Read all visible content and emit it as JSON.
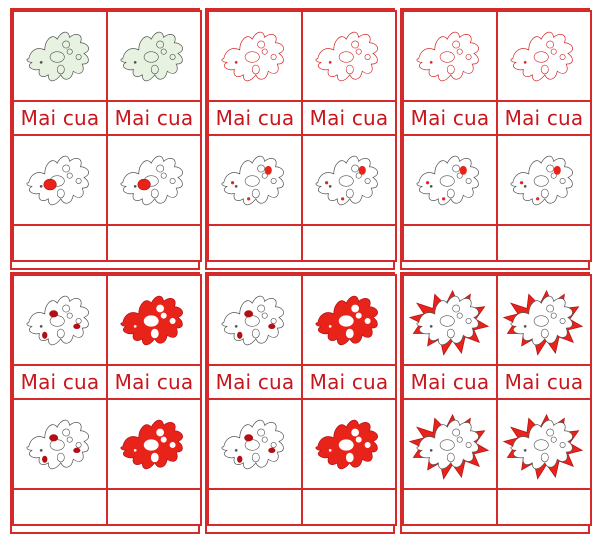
{
  "card_label": "Mai cua",
  "colors": {
    "red": "#d42a2a",
    "text_red": "#c8161d",
    "fill_red": "#e8231a",
    "dark_red": "#b31015",
    "green_tint": "#e7f2e0",
    "outline": "#555555"
  },
  "panels": [
    {
      "id": "panel-1",
      "top": [
        "green",
        "green"
      ],
      "bottom": [
        "nucleus",
        "nucleus"
      ]
    },
    {
      "id": "panel-2",
      "top": [
        "red-outline",
        "red-outline"
      ],
      "bottom": [
        "vacuoles",
        "vacuoles"
      ]
    },
    {
      "id": "panel-3",
      "top": [
        "red-outline",
        "red-outline"
      ],
      "bottom": [
        "vacuoles",
        "vacuoles"
      ]
    },
    {
      "id": "panel-4",
      "top": [
        "small-vacuoles",
        "filled-red"
      ],
      "bottom": [
        "small-vacuoles",
        "filled-red"
      ]
    },
    {
      "id": "panel-5",
      "top": [
        "small-vacuoles",
        "filled-red"
      ],
      "bottom": [
        "small-vacuoles",
        "filled-red"
      ]
    },
    {
      "id": "panel-6",
      "top": [
        "pseudopod-red",
        "pseudopod-red"
      ],
      "bottom": [
        "pseudopod-red",
        "pseudopod-red"
      ]
    }
  ]
}
